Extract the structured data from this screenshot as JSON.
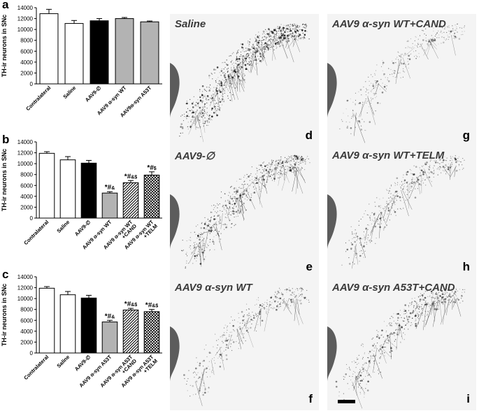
{
  "panels": {
    "a": "a",
    "b": "b",
    "c": "c"
  },
  "chart_data": [
    {
      "type": "bar",
      "ylabel": "TH-ir neurons in SNc",
      "ylim": [
        0,
        14000
      ],
      "yticks": [
        0,
        2000,
        4000,
        6000,
        8000,
        10000,
        12000,
        14000
      ],
      "categories": [
        "Contralateral",
        "Saline",
        "AAV9-∅",
        "AAV9 α-syn WT",
        "AAV9α-syn A53T"
      ],
      "values": [
        12900,
        11100,
        11600,
        12000,
        11400
      ],
      "errors": [
        800,
        550,
        400,
        200,
        150
      ],
      "fills": [
        "white",
        "white",
        "black",
        "gray",
        "gray"
      ],
      "annotations": [
        "",
        "",
        "",
        "",
        ""
      ]
    },
    {
      "type": "bar",
      "ylabel": "TH-ir neurons in SNc",
      "ylim": [
        0,
        14000
      ],
      "yticks": [
        0,
        2000,
        4000,
        6000,
        8000,
        10000,
        12000,
        14000
      ],
      "categories": [
        "Contralateral",
        "Saline",
        "AAV9-∅",
        "AAV9 α-syn WT",
        "AAV9 α-syn WT +CAND",
        "AAV9 α-syn WT +TELM"
      ],
      "values": [
        11900,
        10700,
        10100,
        4600,
        6500,
        7900
      ],
      "errors": [
        300,
        600,
        500,
        250,
        400,
        600
      ],
      "fills": [
        "white",
        "white",
        "black",
        "gray",
        "hatch",
        "cross"
      ],
      "annotations": [
        "",
        "",
        "",
        "*#&",
        "*#&$",
        "*#$"
      ]
    },
    {
      "type": "bar",
      "ylabel": "TH-ir neurons in SNc",
      "ylim": [
        0,
        14000
      ],
      "yticks": [
        0,
        2000,
        4000,
        6000,
        8000,
        10000,
        12000,
        14000
      ],
      "categories": [
        "Contralateral",
        "Saline",
        "AAV9-∅",
        "AAV9 α-syn A53T",
        "AAV9 α-syn A53T +CAND",
        "AAV9 α-syn A53T +TELM"
      ],
      "values": [
        11900,
        10700,
        10100,
        5700,
        7900,
        7600
      ],
      "errors": [
        300,
        600,
        500,
        300,
        300,
        400
      ],
      "fills": [
        "white",
        "white",
        "black",
        "gray",
        "hatch",
        "cross"
      ],
      "annotations": [
        "",
        "",
        "",
        "*#&",
        "*#&$",
        "*#&$"
      ]
    }
  ],
  "micrographs": [
    {
      "title": "Saline",
      "letter": "d"
    },
    {
      "title": "AAV9 α-syn WT+CAND",
      "letter": "g"
    },
    {
      "title": "AAV9-∅",
      "letter": "e"
    },
    {
      "title": "AAV9 α-syn WT+TELM",
      "letter": "h"
    },
    {
      "title": "AAV9 α-syn WT",
      "letter": "f"
    },
    {
      "title": "AAV9 α-syn A53T+CAND",
      "letter": "i"
    }
  ]
}
